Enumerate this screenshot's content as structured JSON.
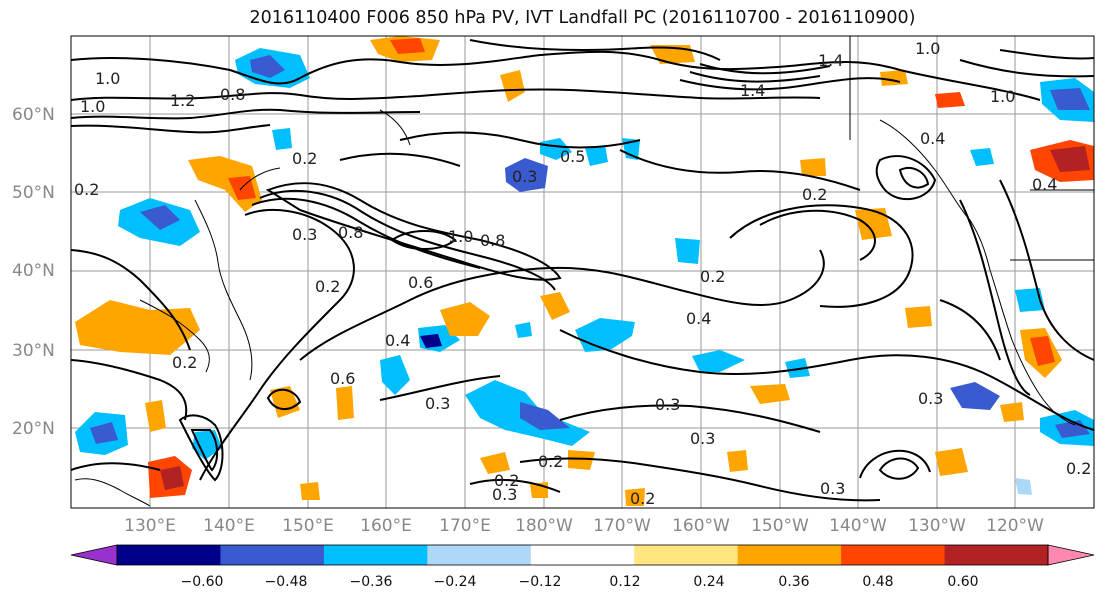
{
  "title": "2016110400 F006 850 hPa PV, IVT Landfall PC (2016110700 - 2016110900)",
  "map": {
    "lat_labels": [
      "60°N",
      "50°N",
      "40°N",
      "30°N",
      "20°N"
    ],
    "lon_labels": [
      "130°E",
      "140°E",
      "150°E",
      "160°E",
      "170°E",
      "180°W",
      "170°W",
      "160°W",
      "150°W",
      "140°W",
      "130°W",
      "120°W"
    ],
    "contour_value_labels": [
      "1.0",
      "1.0",
      "1.2",
      "0.8",
      "0.2",
      "0.2",
      "0.3",
      "0.8",
      "1.0",
      "0.8",
      "0.6",
      "0.4",
      "0.2",
      "0.2",
      "0.4",
      "0.2",
      "0.3",
      "0.3",
      "0.3",
      "0.5",
      "0.2",
      "1.4",
      "1.4",
      "1.0",
      "1.0",
      "0.4",
      "0.3",
      "0.2",
      "0.2",
      "0.3",
      "0.2",
      "0.3",
      "0.3",
      "0.6",
      "0.4",
      "0.2"
    ]
  },
  "colorbar": {
    "colors": [
      "#9932cc",
      "#00008b",
      "#3a5bcf",
      "#00bfff",
      "#add8f7",
      "#ffffff",
      "#ffe680",
      "#ffa500",
      "#ff4500",
      "#b22222",
      "#ff88b0"
    ],
    "tick_labels": [
      "−0.60",
      "−0.48",
      "−0.36",
      "−0.24",
      "−0.12",
      "0.12",
      "0.24",
      "0.36",
      "0.48",
      "0.60"
    ]
  }
}
